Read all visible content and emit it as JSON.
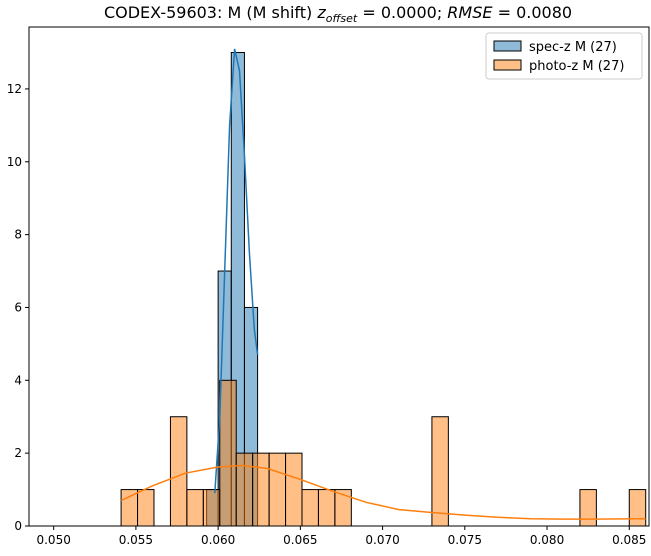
{
  "chart_data": {
    "type": "histogram",
    "title": {
      "prefix": "CODEX-59603: M (M shift) ",
      "z_sym": "z",
      "z_sub": "offset",
      "z_eq": " = 0.0000; ",
      "rmse_sym": "RMSE",
      "rmse_eq": " = 0.0080"
    },
    "xlim": [
      0.0485,
      0.0862
    ],
    "ylim": [
      0,
      13.7
    ],
    "xticks": [
      0.05,
      0.055,
      0.06,
      0.065,
      0.07,
      0.075,
      0.08,
      0.085
    ],
    "xtick_labels": [
      "0.050",
      "0.055",
      "0.060",
      "0.065",
      "0.070",
      "0.075",
      "0.080",
      "0.085"
    ],
    "yticks": [
      0,
      2,
      4,
      6,
      8,
      10,
      12
    ],
    "ytick_labels": [
      "0",
      "2",
      "4",
      "6",
      "8",
      "10",
      "12"
    ],
    "legend_position": "top-right",
    "series": [
      {
        "name": "spec-z M (27)",
        "color": "#1f77b4",
        "bins": [
          {
            "x0": 0.06,
            "x1": 0.0608,
            "count": 7
          },
          {
            "x0": 0.0608,
            "x1": 0.0616,
            "count": 13
          },
          {
            "x0": 0.0616,
            "x1": 0.0624,
            "count": 6
          },
          {
            "x0": 0.0593,
            "x1": 0.06,
            "count": 1
          }
        ],
        "kde": [
          [
            0.0598,
            0.9
          ],
          [
            0.0601,
            3.0
          ],
          [
            0.0604,
            7.0
          ],
          [
            0.0607,
            11.0
          ],
          [
            0.061,
            13.1
          ],
          [
            0.0613,
            12.5
          ],
          [
            0.0616,
            10.2
          ],
          [
            0.0619,
            7.5
          ],
          [
            0.0622,
            5.4
          ],
          [
            0.0624,
            4.7
          ]
        ]
      },
      {
        "name": "photo-z M (27)",
        "color": "#ff7f0e",
        "bins": [
          {
            "x0": 0.0541,
            "x1": 0.0551,
            "count": 1
          },
          {
            "x0": 0.0551,
            "x1": 0.0561,
            "count": 1
          },
          {
            "x0": 0.0571,
            "x1": 0.0581,
            "count": 3
          },
          {
            "x0": 0.0581,
            "x1": 0.0591,
            "count": 1
          },
          {
            "x0": 0.0591,
            "x1": 0.0601,
            "count": 1
          },
          {
            "x0": 0.0601,
            "x1": 0.0611,
            "count": 4
          },
          {
            "x0": 0.0611,
            "x1": 0.0621,
            "count": 2
          },
          {
            "x0": 0.0621,
            "x1": 0.0631,
            "count": 2
          },
          {
            "x0": 0.0631,
            "x1": 0.0641,
            "count": 2
          },
          {
            "x0": 0.0641,
            "x1": 0.0651,
            "count": 2
          },
          {
            "x0": 0.0651,
            "x1": 0.0661,
            "count": 1
          },
          {
            "x0": 0.0661,
            "x1": 0.0671,
            "count": 1
          },
          {
            "x0": 0.0671,
            "x1": 0.0681,
            "count": 1
          },
          {
            "x0": 0.073,
            "x1": 0.074,
            "count": 3
          },
          {
            "x0": 0.082,
            "x1": 0.083,
            "count": 1
          },
          {
            "x0": 0.085,
            "x1": 0.086,
            "count": 1
          }
        ],
        "kde": [
          [
            0.0541,
            0.7
          ],
          [
            0.056,
            1.1
          ],
          [
            0.058,
            1.45
          ],
          [
            0.06,
            1.62
          ],
          [
            0.0615,
            1.66
          ],
          [
            0.063,
            1.58
          ],
          [
            0.065,
            1.28
          ],
          [
            0.067,
            0.95
          ],
          [
            0.069,
            0.65
          ],
          [
            0.071,
            0.45
          ],
          [
            0.073,
            0.37
          ],
          [
            0.075,
            0.3
          ],
          [
            0.077,
            0.24
          ],
          [
            0.079,
            0.2
          ],
          [
            0.081,
            0.19
          ],
          [
            0.083,
            0.19
          ],
          [
            0.086,
            0.2
          ]
        ]
      }
    ]
  }
}
